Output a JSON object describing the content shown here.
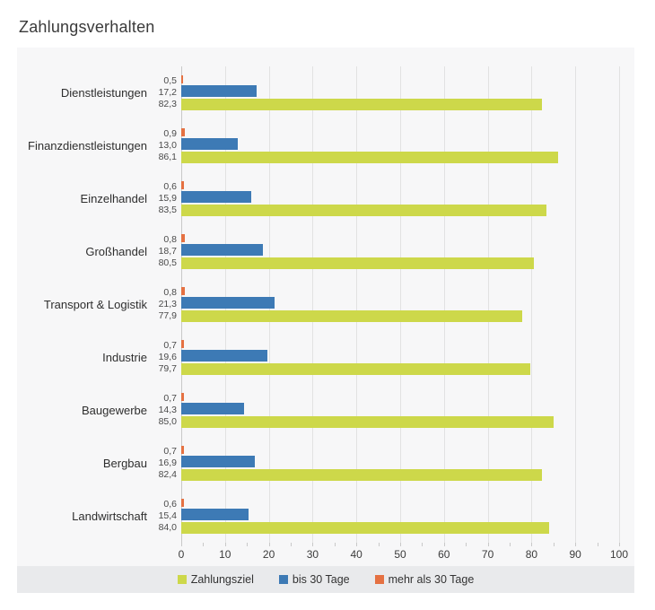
{
  "title": "Zahlungsverhalten",
  "colors": {
    "chart_bg": "#f7f7f8",
    "legend_bg": "#e9eaec",
    "gridline": "#e2e2e2",
    "axis_line": "#c9c9c9",
    "title": "#3a3a3a"
  },
  "chart_data": {
    "type": "bar",
    "orientation": "horizontal",
    "title": "Zahlungsverhalten",
    "categories": [
      "Dienstleistungen",
      "Finanzdienstleistungen",
      "Einzelhandel",
      "Großhandel",
      "Transport & Logistik",
      "Industrie",
      "Baugewerbe",
      "Bergbau",
      "Landwirtschaft"
    ],
    "series": [
      {
        "name": "mehr als 30 Tage",
        "color": "#e57142",
        "values": [
          0.5,
          0.9,
          0.6,
          0.8,
          0.8,
          0.7,
          0.7,
          0.7,
          0.6
        ]
      },
      {
        "name": "bis 30 Tage",
        "color": "#3d7ab5",
        "values": [
          17.2,
          13.0,
          15.9,
          18.7,
          21.3,
          19.6,
          14.3,
          16.9,
          15.4
        ]
      },
      {
        "name": "Zahlungsziel",
        "color": "#cdd84a",
        "values": [
          82.3,
          86.1,
          83.5,
          80.5,
          77.9,
          79.7,
          85.0,
          82.4,
          84.0
        ]
      }
    ],
    "legend_order": [
      2,
      1,
      0
    ],
    "legend_position": "bottom",
    "x_axis": {
      "range": [
        0,
        100
      ],
      "ticks": [
        0,
        10,
        20,
        30,
        40,
        50,
        60,
        70,
        80,
        90,
        100
      ],
      "minor_tick_interval": 5
    },
    "grid": true,
    "value_label_decimal_separator": ","
  }
}
